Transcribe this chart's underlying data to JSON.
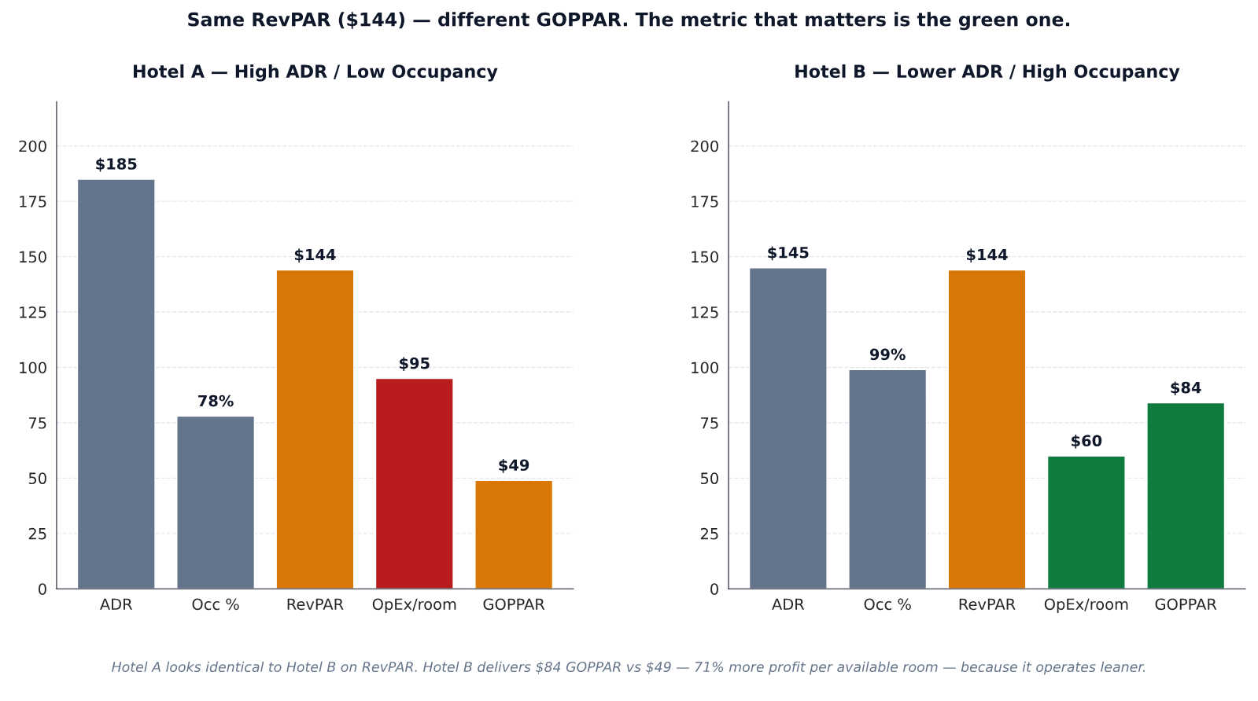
{
  "chart_data": [
    {
      "type": "bar",
      "title": "Hotel A — High ADR / Low Occupancy",
      "categories": [
        "ADR",
        "Occ %",
        "RevPAR",
        "OpEx/room",
        "GOPPAR"
      ],
      "values": [
        185,
        78,
        144,
        95,
        49
      ],
      "colors": [
        "#64748b",
        "#64748b",
        "#d97706",
        "#b91c1c",
        "#d97706"
      ],
      "value_labels": [
        "$185",
        "78%",
        "$144",
        "$95",
        "$49"
      ],
      "ylim": [
        0,
        220
      ],
      "yticks": [
        0,
        25,
        50,
        75,
        100,
        125,
        150,
        175,
        200
      ],
      "grid": "y",
      "line_style": "dashed",
      "annotations": [
        "Same RevPAR ($144) — different GOPPAR. The metric that matters is the green one."
      ]
    },
    {
      "type": "bar",
      "title": "Hotel B — Lower ADR / High Occupancy",
      "categories": [
        "ADR",
        "Occ %",
        "RevPAR",
        "OpEx/room",
        "GOPPAR"
      ],
      "values": [
        145,
        99,
        144,
        60,
        84
      ],
      "colors": [
        "#64748b",
        "#64748b",
        "#d97706",
        "#0f7b3f",
        "#0f7b3f"
      ],
      "value_labels": [
        "$145",
        "99%",
        "$144",
        "$60",
        "$84"
      ],
      "ylim": [
        0,
        220
      ],
      "yticks": [
        0,
        25,
        50,
        75,
        100,
        125,
        150,
        175,
        200
      ],
      "grid": "y",
      "line_style": "dashed",
      "annotations": [
        "Hotel A looks identical to Hotel B on RevPAR. Hotel B delivers $84 GOPPAR vs $49 — 71% more profit per available room — because it operates leaner."
      ]
    }
  ]
}
